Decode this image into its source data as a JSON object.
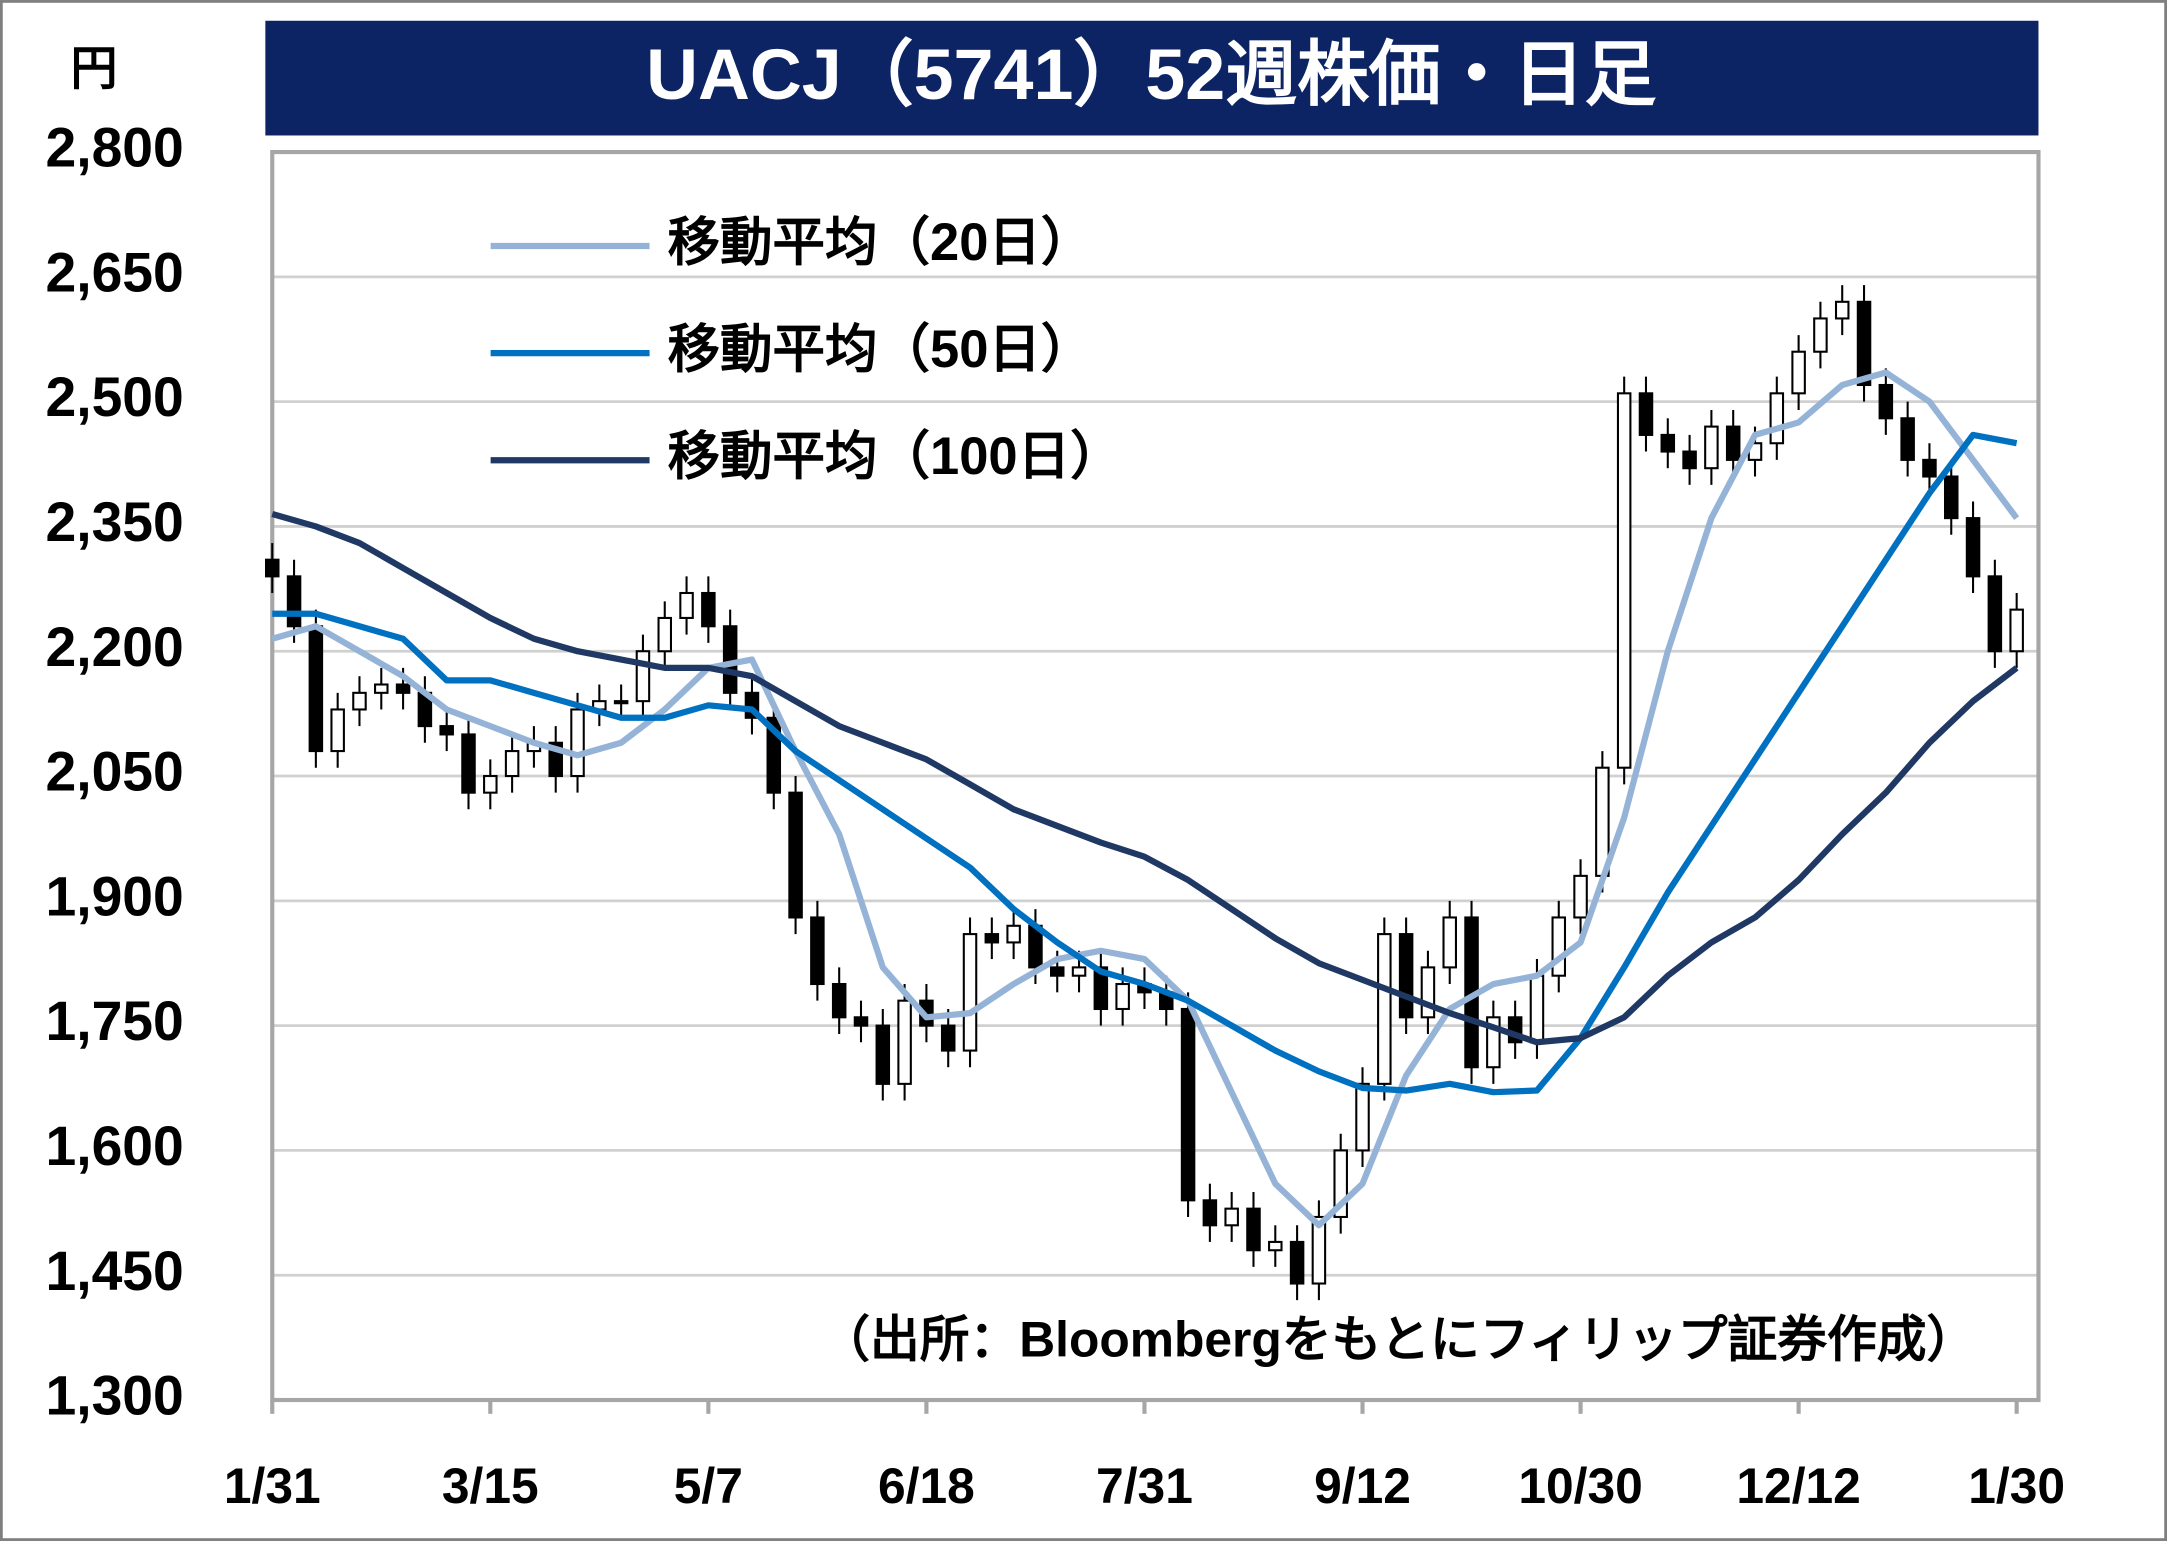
{
  "chart_data": {
    "type": "candlestick",
    "title": "UACJ（5741）52週株価・日足",
    "y_unit": "円",
    "source": "（出所：Bloombergをもとにフィリップ証券作成）",
    "grid": true,
    "legend": "upper left",
    "up_color": "#ffffff",
    "down_color": "#000000",
    "xlim": [
      0,
      243
    ],
    "ylim": [
      1300,
      2800
    ],
    "yticks": [
      {
        "value": 1300,
        "label": "1,300"
      },
      {
        "value": 1450,
        "label": "1,450"
      },
      {
        "value": 1600,
        "label": "1,600"
      },
      {
        "value": 1750,
        "label": "1,750"
      },
      {
        "value": 1900,
        "label": "1,900"
      },
      {
        "value": 2050,
        "label": "2,050"
      },
      {
        "value": 2200,
        "label": "2,200"
      },
      {
        "value": 2350,
        "label": "2,350"
      },
      {
        "value": 2500,
        "label": "2,500"
      },
      {
        "value": 2650,
        "label": "2,650"
      },
      {
        "value": 2800,
        "label": "2,800"
      }
    ],
    "xticks": [
      {
        "value": 0,
        "label": "1/31"
      },
      {
        "value": 30,
        "label": "3/15"
      },
      {
        "value": 60,
        "label": "5/7"
      },
      {
        "value": 90,
        "label": "6/18"
      },
      {
        "value": 120,
        "label": "7/31"
      },
      {
        "value": 150,
        "label": "9/12"
      },
      {
        "value": 180,
        "label": "10/30"
      },
      {
        "value": 210,
        "label": "12/12"
      },
      {
        "value": 240,
        "label": "1/30"
      }
    ],
    "candles": {
      "x": [
        0,
        3,
        6,
        9,
        12,
        15,
        18,
        21,
        24,
        27,
        30,
        33,
        36,
        39,
        42,
        45,
        48,
        51,
        54,
        57,
        60,
        63,
        66,
        69,
        72,
        75,
        78,
        81,
        84,
        87,
        90,
        93,
        96,
        99,
        102,
        105,
        108,
        111,
        114,
        117,
        120,
        123,
        126,
        129,
        132,
        135,
        138,
        141,
        144,
        147,
        150,
        153,
        156,
        159,
        162,
        165,
        168,
        171,
        174,
        177,
        180,
        183,
        186,
        189,
        192,
        195,
        198,
        201,
        204,
        207,
        210,
        213,
        216,
        219,
        222,
        225,
        228,
        231,
        234,
        237,
        240
      ],
      "open": [
        2310,
        2290,
        2230,
        2080,
        2130,
        2150,
        2160,
        2150,
        2110,
        2100,
        2030,
        2050,
        2080,
        2090,
        2050,
        2130,
        2140,
        2140,
        2200,
        2240,
        2270,
        2230,
        2150,
        2120,
        2030,
        1880,
        1800,
        1760,
        1750,
        1680,
        1780,
        1750,
        1720,
        1860,
        1850,
        1870,
        1820,
        1810,
        1820,
        1770,
        1800,
        1790,
        1770,
        1540,
        1510,
        1530,
        1480,
        1490,
        1440,
        1520,
        1600,
        1680,
        1860,
        1760,
        1820,
        1880,
        1700,
        1760,
        1730,
        1810,
        1880,
        1930,
        2060,
        2510,
        2460,
        2440,
        2420,
        2470,
        2430,
        2450,
        2510,
        2560,
        2600,
        2620,
        2520,
        2480,
        2430,
        2410,
        2360,
        2290,
        2200
      ],
      "high": [
        2330,
        2310,
        2250,
        2150,
        2170,
        2180,
        2180,
        2170,
        2130,
        2120,
        2070,
        2100,
        2110,
        2110,
        2150,
        2160,
        2160,
        2220,
        2260,
        2290,
        2290,
        2250,
        2170,
        2140,
        2050,
        1900,
        1820,
        1780,
        1770,
        1800,
        1800,
        1770,
        1880,
        1880,
        1890,
        1890,
        1840,
        1840,
        1840,
        1820,
        1820,
        1810,
        1790,
        1560,
        1550,
        1550,
        1510,
        1510,
        1540,
        1620,
        1700,
        1880,
        1880,
        1840,
        1900,
        1900,
        1780,
        1780,
        1830,
        1900,
        1950,
        2080,
        2530,
        2530,
        2480,
        2460,
        2490,
        2490,
        2470,
        2530,
        2580,
        2620,
        2640,
        2640,
        2540,
        2500,
        2450,
        2430,
        2380,
        2310,
        2270
      ],
      "low": [
        2270,
        2210,
        2060,
        2060,
        2110,
        2130,
        2130,
        2090,
        2080,
        2010,
        2010,
        2030,
        2060,
        2030,
        2030,
        2110,
        2120,
        2120,
        2180,
        2220,
        2210,
        2130,
        2100,
        2010,
        1860,
        1780,
        1740,
        1730,
        1660,
        1660,
        1730,
        1700,
        1700,
        1830,
        1830,
        1800,
        1790,
        1790,
        1750,
        1750,
        1770,
        1750,
        1520,
        1490,
        1490,
        1460,
        1460,
        1420,
        1420,
        1500,
        1580,
        1660,
        1740,
        1740,
        1800,
        1680,
        1680,
        1710,
        1710,
        1790,
        1860,
        1910,
        2040,
        2440,
        2420,
        2400,
        2400,
        2410,
        2410,
        2430,
        2490,
        2540,
        2580,
        2500,
        2460,
        2410,
        2390,
        2340,
        2270,
        2180,
        2180
      ],
      "close": [
        2290,
        2230,
        2080,
        2130,
        2150,
        2160,
        2150,
        2110,
        2100,
        2030,
        2050,
        2080,
        2090,
        2050,
        2130,
        2140,
        2140,
        2200,
        2240,
        2270,
        2230,
        2150,
        2120,
        2030,
        1880,
        1800,
        1760,
        1750,
        1680,
        1780,
        1750,
        1720,
        1860,
        1850,
        1870,
        1820,
        1810,
        1820,
        1770,
        1800,
        1790,
        1770,
        1540,
        1510,
        1530,
        1480,
        1490,
        1440,
        1520,
        1600,
        1680,
        1860,
        1760,
        1820,
        1880,
        1700,
        1760,
        1730,
        1810,
        1880,
        1930,
        2060,
        2510,
        2460,
        2440,
        2420,
        2470,
        2430,
        2450,
        2510,
        2560,
        2600,
        2620,
        2520,
        2480,
        2430,
        2410,
        2360,
        2290,
        2200,
        2250
      ]
    },
    "lines": [
      {
        "name": "移動平均（20日）",
        "color": "#95b3d7",
        "x": [
          0,
          6,
          12,
          18,
          24,
          30,
          36,
          42,
          48,
          54,
          60,
          66,
          72,
          78,
          84,
          90,
          96,
          102,
          108,
          114,
          120,
          126,
          132,
          138,
          144,
          150,
          156,
          162,
          168,
          174,
          180,
          186,
          192,
          198,
          204,
          210,
          216,
          222,
          228,
          234,
          240
        ],
        "values": [
          2215,
          2230,
          2200,
          2170,
          2130,
          2110,
          2090,
          2075,
          2090,
          2130,
          2180,
          2190,
          2080,
          1980,
          1820,
          1760,
          1765,
          1800,
          1830,
          1840,
          1830,
          1780,
          1670,
          1560,
          1510,
          1560,
          1690,
          1770,
          1800,
          1810,
          1850,
          2000,
          2200,
          2360,
          2460,
          2475,
          2520,
          2535,
          2500,
          2430,
          2360
        ]
      },
      {
        "name": "移動平均（50日）",
        "color": "#0070c0",
        "x": [
          0,
          6,
          12,
          18,
          24,
          30,
          36,
          42,
          48,
          54,
          60,
          66,
          72,
          78,
          84,
          90,
          96,
          102,
          108,
          114,
          120,
          126,
          132,
          138,
          144,
          150,
          156,
          162,
          168,
          174,
          180,
          186,
          192,
          198,
          204,
          210,
          216,
          222,
          228,
          234,
          240
        ],
        "values": [
          2245,
          2245,
          2230,
          2215,
          2165,
          2165,
          2150,
          2135,
          2120,
          2120,
          2135,
          2130,
          2080,
          2045,
          2010,
          1975,
          1940,
          1890,
          1850,
          1815,
          1800,
          1780,
          1750,
          1720,
          1695,
          1675,
          1672,
          1680,
          1670,
          1672,
          1735,
          1820,
          1910,
          1990,
          2070,
          2150,
          2230,
          2310,
          2390,
          2460,
          2450
        ]
      },
      {
        "name": "移動平均（100日）",
        "color": "#1f3864",
        "x": [
          0,
          6,
          12,
          18,
          24,
          30,
          36,
          42,
          48,
          54,
          60,
          66,
          72,
          78,
          84,
          90,
          96,
          102,
          108,
          114,
          120,
          126,
          132,
          138,
          144,
          150,
          156,
          162,
          168,
          174,
          180,
          186,
          192,
          198,
          204,
          210,
          216,
          222,
          228,
          234,
          240
        ],
        "values": [
          2365,
          2350,
          2330,
          2300,
          2270,
          2240,
          2215,
          2200,
          2190,
          2180,
          2180,
          2170,
          2140,
          2110,
          2090,
          2070,
          2040,
          2010,
          1990,
          1970,
          1953,
          1925,
          1890,
          1855,
          1825,
          1805,
          1785,
          1765,
          1748,
          1730,
          1735,
          1760,
          1810,
          1850,
          1880,
          1925,
          1980,
          2030,
          2090,
          2140,
          2180
        ]
      }
    ]
  }
}
